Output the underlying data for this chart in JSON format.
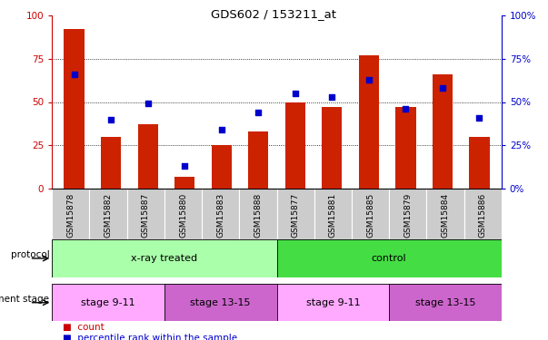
{
  "title": "GDS602 / 153211_at",
  "samples": [
    "GSM15878",
    "GSM15882",
    "GSM15887",
    "GSM15880",
    "GSM15883",
    "GSM15888",
    "GSM15877",
    "GSM15881",
    "GSM15885",
    "GSM15879",
    "GSM15884",
    "GSM15886"
  ],
  "counts": [
    92,
    30,
    37,
    7,
    25,
    33,
    50,
    47,
    77,
    47,
    66,
    30
  ],
  "percentiles": [
    66,
    40,
    49,
    13,
    34,
    44,
    55,
    53,
    63,
    46,
    58,
    41
  ],
  "protocol_groups": [
    {
      "label": "x-ray treated",
      "start": 0,
      "end": 6,
      "color": "#aaffaa"
    },
    {
      "label": "control",
      "start": 6,
      "end": 12,
      "color": "#44dd44"
    }
  ],
  "stage_groups": [
    {
      "label": "stage 9-11",
      "start": 0,
      "end": 3,
      "color": "#ffaaff"
    },
    {
      "label": "stage 13-15",
      "start": 3,
      "end": 6,
      "color": "#cc66cc"
    },
    {
      "label": "stage 9-11",
      "start": 6,
      "end": 9,
      "color": "#ffaaff"
    },
    {
      "label": "stage 13-15",
      "start": 9,
      "end": 12,
      "color": "#cc66cc"
    }
  ],
  "bar_color": "#cc2200",
  "dot_color": "#0000cc",
  "left_axis_color": "#cc0000",
  "right_axis_color": "#0000cc",
  "ylim": [
    0,
    100
  ],
  "yticks": [
    0,
    25,
    50,
    75,
    100
  ],
  "legend_items": [
    {
      "label": "count",
      "color": "#cc0000"
    },
    {
      "label": "percentile rank within the sample",
      "color": "#0000cc"
    }
  ]
}
